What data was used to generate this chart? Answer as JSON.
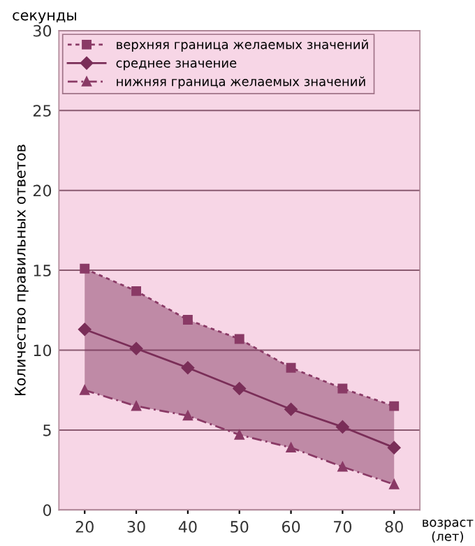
{
  "chart_data": {
    "type": "line",
    "ylabel": "Количество правильных ответов",
    "xlabel": "возраст\n(лет)",
    "annotations": [
      "секунды"
    ],
    "x": [
      20,
      30,
      40,
      50,
      60,
      70,
      80
    ],
    "xlim": [
      15,
      85
    ],
    "xticks": [
      20,
      30,
      40,
      50,
      60,
      70,
      80
    ],
    "ylim": [
      0,
      30
    ],
    "yticks": [
      0,
      5,
      10,
      15,
      20,
      25,
      30
    ],
    "grid": "y",
    "legend": "top left",
    "series": [
      {
        "name": "верхняя граница желаемых значений",
        "color": "#8a3a66",
        "line_style": "dotted",
        "marker": "square",
        "values": [
          15.1,
          13.7,
          11.9,
          10.7,
          8.9,
          7.6,
          6.5
        ]
      },
      {
        "name": "среднее значение",
        "color": "#7a2e58",
        "line_style": "solid",
        "marker": "diamond",
        "values": [
          11.3,
          10.1,
          8.9,
          7.6,
          6.3,
          5.2,
          3.9
        ],
        "lower": [
          7.5,
          6.5,
          5.9,
          4.7,
          3.9,
          2.7,
          1.6
        ],
        "upper": [
          15.1,
          13.7,
          11.9,
          10.7,
          8.9,
          7.6,
          6.5
        ]
      },
      {
        "name": "нижняя граница желаемых значений",
        "color": "#8a3a66",
        "line_style": "dashed",
        "marker": "triangle",
        "values": [
          7.5,
          6.5,
          5.9,
          4.7,
          3.9,
          2.7,
          1.6
        ]
      }
    ]
  }
}
